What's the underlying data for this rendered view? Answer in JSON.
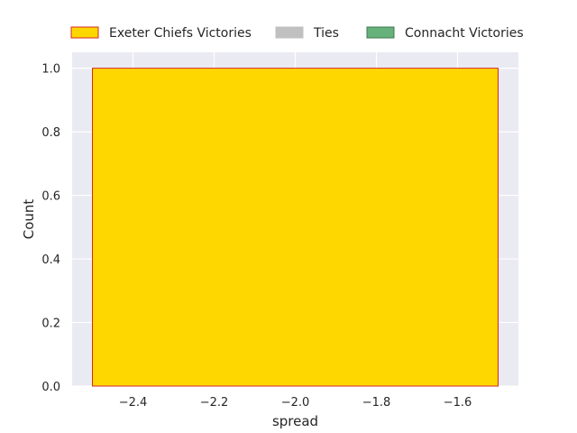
{
  "chart_data": {
    "type": "bar",
    "xlabel": "spread",
    "ylabel": "Count",
    "xlim": [
      -2.55,
      -1.45
    ],
    "ylim": [
      0,
      1.05
    ],
    "xticks": [
      -2.4,
      -2.2,
      -2.0,
      -1.8,
      -1.6
    ],
    "xtick_labels": [
      "−2.4",
      "−2.2",
      "−2.0",
      "−1.8",
      "−1.6"
    ],
    "yticks": [
      0.0,
      0.2,
      0.4,
      0.6,
      0.8,
      1.0
    ],
    "ytick_labels": [
      "0.0",
      "0.2",
      "0.4",
      "0.6",
      "0.8",
      "1.0"
    ],
    "grid": true,
    "legend_position": "top",
    "series": [
      {
        "name": "Exeter Chiefs Victories",
        "fill": "#ffd700",
        "edge": "#d62728",
        "bars": [
          {
            "x_start": -2.5,
            "x_end": -1.5,
            "value": 1
          }
        ]
      },
      {
        "name": "Ties",
        "fill": "#c0c0c0",
        "edge": "#c0c0c0",
        "bars": []
      },
      {
        "name": "Connacht Victories",
        "fill": "#66b27a",
        "edge": "#3f7a50",
        "bars": []
      }
    ],
    "background": "#eaeaf2",
    "grid_color": "#ffffff"
  }
}
